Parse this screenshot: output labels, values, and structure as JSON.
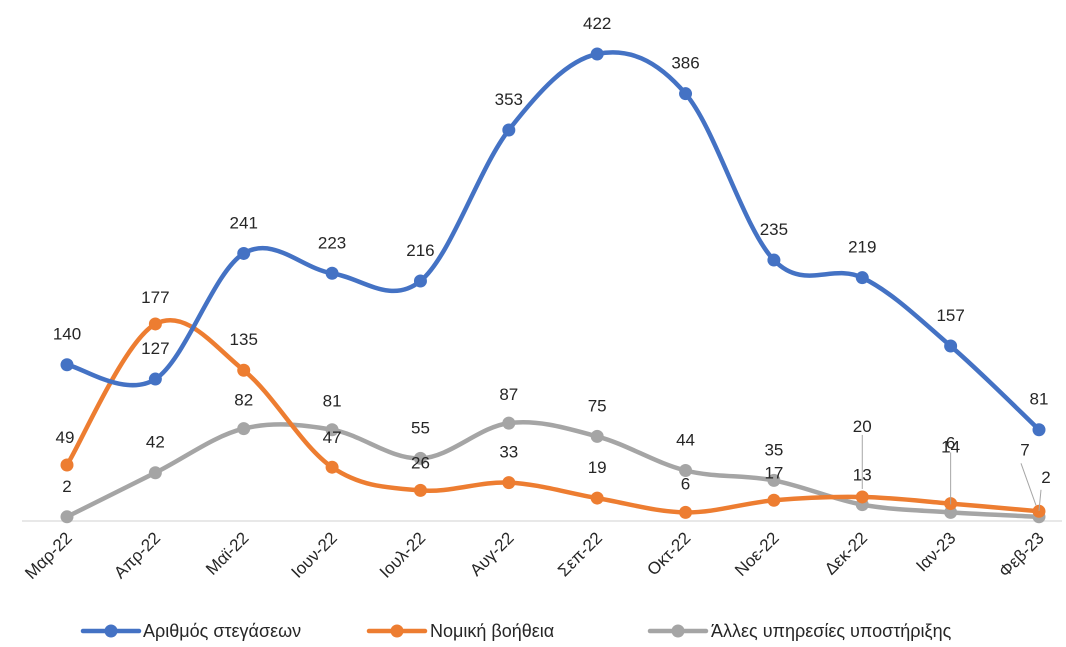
{
  "chart_data": {
    "type": "line",
    "title": "",
    "xlabel": "",
    "ylabel": "",
    "categories": [
      "Μαρ-22",
      "Απρ-22",
      "Μαϊ-22",
      "Ιουν-22",
      "Ιουλ-22",
      "Αυγ-22",
      "Σεπ-22",
      "Οκτ-22",
      "Νοε-22",
      "Δεκ-22",
      "Ιαν-23",
      "Φεβ-23"
    ],
    "ylim": [
      0,
      430
    ],
    "grid": false,
    "legend_position": "bottom",
    "smooth": true,
    "series": [
      {
        "name": "Αριθμός στεγάσεων",
        "color": "#4472C4",
        "values": [
          140,
          127,
          241,
          223,
          216,
          353,
          422,
          386,
          235,
          219,
          157,
          81
        ],
        "labels": [
          "140",
          "127",
          "241",
          "223",
          "216",
          "353",
          "422",
          "386",
          "235",
          "219",
          "157",
          "81"
        ]
      },
      {
        "name": "Νομική βοήθεια",
        "color": "#ED7D31",
        "values": [
          49,
          177,
          135,
          47,
          26,
          33,
          19,
          6,
          17,
          20,
          14,
          7
        ],
        "labels": [
          "49",
          "177",
          "135",
          "47",
          "26",
          "33",
          "19",
          "6",
          "17",
          "20",
          "14",
          "7"
        ]
      },
      {
        "name": "Άλλες υπηρεσίες υποστήριξης",
        "color": "#A5A5A5",
        "values": [
          2,
          42,
          82,
          81,
          55,
          87,
          75,
          44,
          35,
          13,
          6,
          2
        ],
        "labels": [
          "2",
          "42",
          "82",
          "81",
          "55",
          "87",
          "75",
          "44",
          "35",
          "13",
          "6",
          "2"
        ]
      }
    ]
  }
}
